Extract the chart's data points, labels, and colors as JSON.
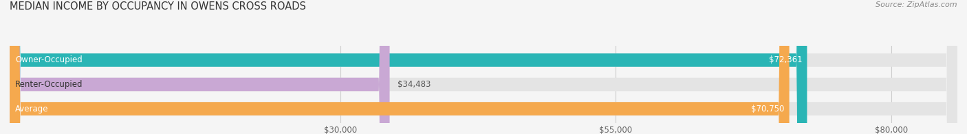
{
  "title": "MEDIAN INCOME BY OCCUPANCY IN OWENS CROSS ROADS",
  "source": "Source: ZipAtlas.com",
  "categories": [
    "Owner-Occupied",
    "Renter-Occupied",
    "Average"
  ],
  "values": [
    72361,
    34483,
    70750
  ],
  "bar_colors": [
    "#2ab5b5",
    "#c9a8d4",
    "#f5a94e"
  ],
  "value_labels": [
    "$72,361",
    "$34,483",
    "$70,750"
  ],
  "value_label_inside": [
    true,
    false,
    true
  ],
  "track_color": "#e4e4e4",
  "xlim_max": 86000,
  "xticks": [
    30000,
    55000,
    80000
  ],
  "xtick_labels": [
    "$30,000",
    "$55,000",
    "$80,000"
  ],
  "bar_height": 0.55,
  "background_color": "#f5f5f5",
  "title_fontsize": 10.5,
  "label_fontsize": 8.5,
  "tick_fontsize": 8.5,
  "source_fontsize": 8,
  "rounding_size": 1000
}
